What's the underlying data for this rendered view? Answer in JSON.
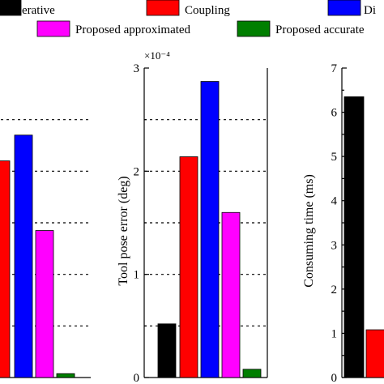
{
  "legend": [
    {
      "label": "Ierative",
      "color": "#000000"
    },
    {
      "label": "Coupling",
      "color": "#ff0000"
    },
    {
      "label": "Di",
      "color": "#0000ff"
    },
    {
      "label": "Proposed approximated",
      "color": "#ff00ff"
    },
    {
      "label": "Proposed accurate",
      "color": "#007f00"
    }
  ],
  "chart_data": [
    {
      "type": "bar",
      "panel": "left",
      "categories": [
        "Coupling",
        "Di",
        "Proposed approximated",
        "Proposed accurate"
      ],
      "values": [
        0.84,
        0.94,
        0.57,
        0.015
      ],
      "ylim": [
        0,
        1.2
      ],
      "grid": true,
      "tick_labels": []
    },
    {
      "type": "bar",
      "panel": "middle",
      "categories": [
        "Ierative",
        "Coupling",
        "Di",
        "Proposed approximated",
        "Proposed accurate"
      ],
      "values": [
        0.52,
        2.14,
        2.87,
        1.6,
        0.08
      ],
      "ylim": [
        0,
        3
      ],
      "ylabel": "Tool pose error (deg)",
      "multiplier": "×10⁻⁴",
      "yticks": [
        0,
        1,
        2,
        3
      ],
      "tick_labels": [
        "0",
        "1",
        "2",
        "3"
      ],
      "grid": true
    },
    {
      "type": "bar",
      "panel": "right",
      "categories": [
        "Ierative",
        "Coupling"
      ],
      "values": [
        6.35,
        1.08
      ],
      "ylim": [
        0,
        7
      ],
      "ylabel": "Consuming time (ms)",
      "yticks": [
        0,
        1,
        2,
        3,
        4,
        5,
        6,
        7
      ],
      "tick_labels": [
        "0",
        "1",
        "2",
        "3",
        "4",
        "5",
        "6",
        "7"
      ],
      "grid": false
    }
  ]
}
